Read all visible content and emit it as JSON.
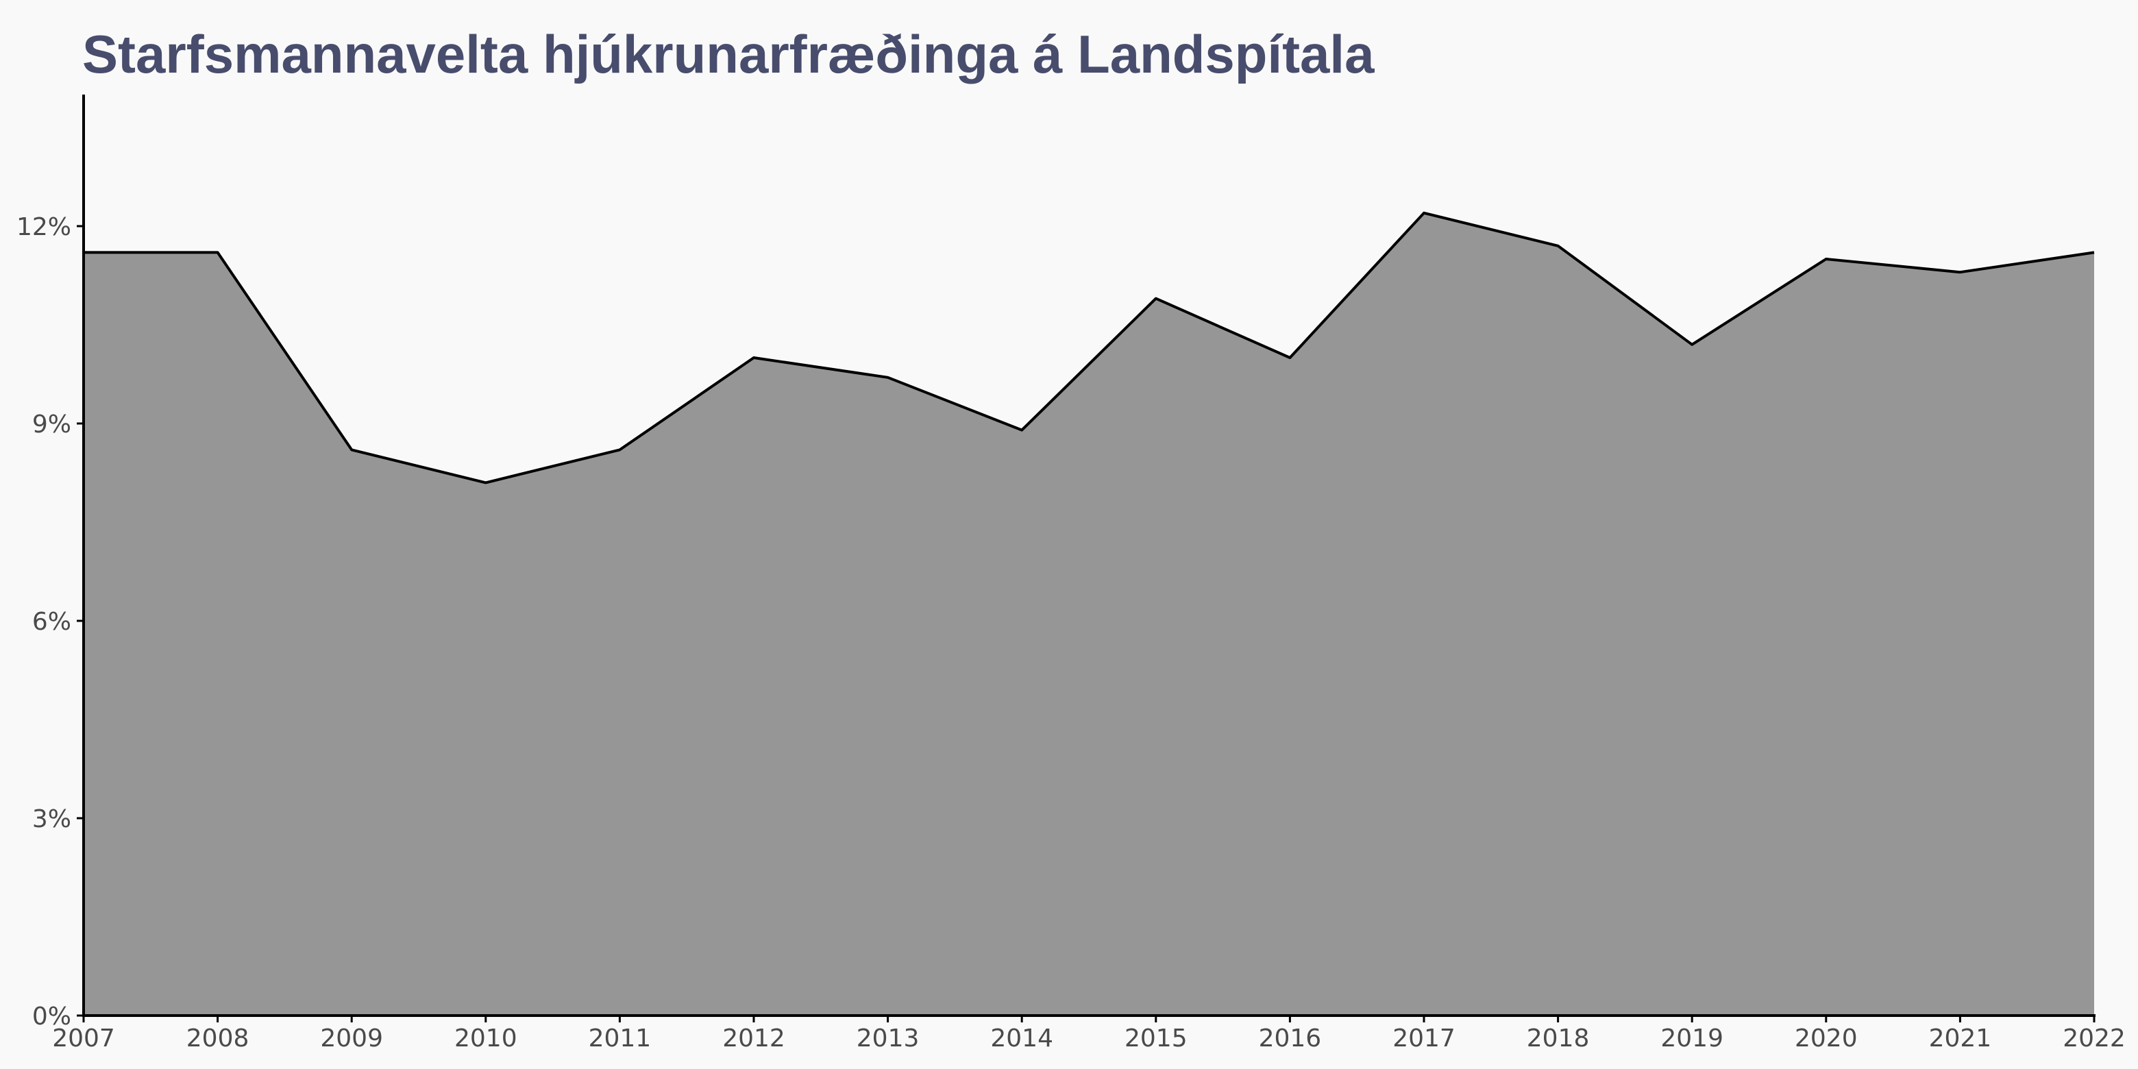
{
  "chart_data": {
    "type": "area",
    "title": "Starfsmannavelta hjúkrunarfræðinga á Landspítala",
    "xlabel": "",
    "ylabel": "",
    "x": [
      2007,
      2008,
      2009,
      2010,
      2011,
      2012,
      2013,
      2014,
      2015,
      2016,
      2017,
      2018,
      2019,
      2020,
      2021,
      2022
    ],
    "series": [
      {
        "values": [
          11.6,
          11.6,
          8.6,
          8.1,
          8.6,
          10.0,
          9.7,
          8.9,
          10.9,
          10.0,
          12.2,
          11.7,
          10.2,
          11.5,
          11.3,
          11.6
        ],
        "fill_color": "#969696",
        "line_color": "#000000"
      }
    ],
    "xlim": [
      2007,
      2022
    ],
    "ylim": [
      0,
      14
    ],
    "x_ticks": [
      "2007",
      "2008",
      "2009",
      "2010",
      "2011",
      "2012",
      "2013",
      "2014",
      "2015",
      "2016",
      "2017",
      "2018",
      "2019",
      "2020",
      "2021",
      "2022"
    ],
    "y_ticks": [
      0,
      3,
      6,
      9,
      12
    ],
    "y_tick_labels": [
      "0%",
      "3%",
      "6%",
      "9%",
      "12%"
    ],
    "grid": false,
    "legend": "none"
  }
}
